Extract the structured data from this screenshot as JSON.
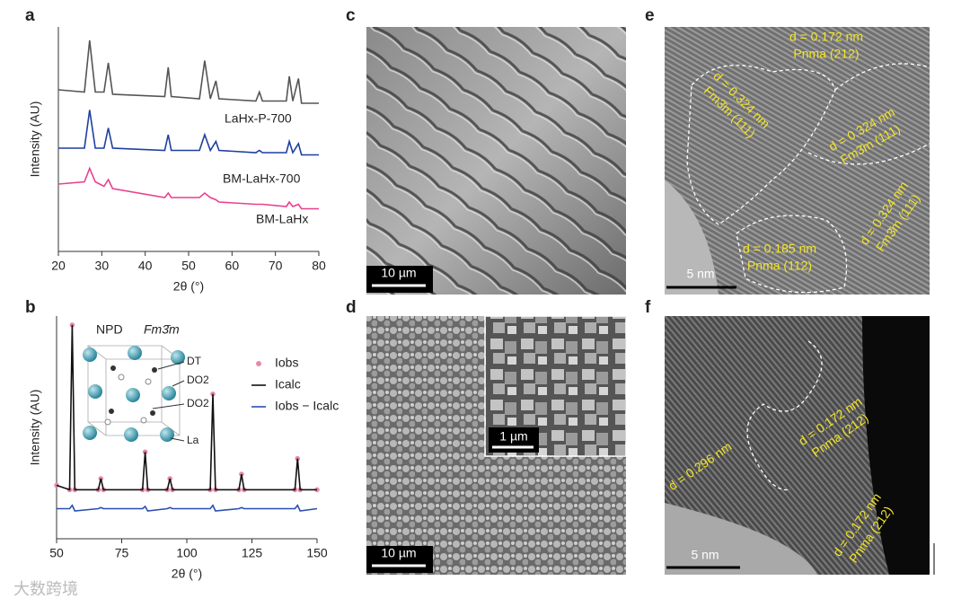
{
  "chart_data": [
    {
      "type": "line",
      "label": "a",
      "y_label": "Intensity (AU)",
      "x_label": "2θ (°)",
      "xlim": [
        20,
        80
      ],
      "xticks": [
        20,
        30,
        40,
        50,
        60,
        70,
        80
      ],
      "ylim": [
        0,
        100
      ],
      "x": [
        20,
        26,
        27.2,
        28.5,
        30.5,
        31.5,
        32.5,
        44.5,
        45.3,
        46,
        52.5,
        53.7,
        55,
        56.3,
        57,
        65.5,
        66.3,
        67,
        72.5,
        73.2,
        74,
        75.3,
        76,
        80
      ],
      "series": [
        {
          "name": "LaHx-P-700",
          "color": "#555555",
          "values": [
            72,
            71,
            94,
            71,
            71,
            84,
            70,
            69,
            82,
            69,
            68,
            85,
            68,
            76,
            68,
            67,
            71,
            67,
            67,
            78,
            67,
            77,
            66,
            66
          ]
        },
        {
          "name": "BM-LaHx-700",
          "color": "#1f3f9f",
          "values": [
            46,
            46,
            63,
            46,
            46,
            55,
            46,
            45,
            52,
            45,
            45,
            52,
            45,
            49,
            45,
            44,
            45,
            44,
            44,
            49,
            44,
            48,
            43,
            43
          ]
        },
        {
          "name": "BM-LaHx",
          "color": "#e8418f",
          "values": [
            30,
            31,
            37,
            31,
            29,
            32,
            28,
            24,
            26,
            24,
            24,
            26,
            24,
            23,
            22,
            21,
            21,
            21,
            20,
            22,
            20,
            21,
            19,
            19
          ]
        }
      ]
    },
    {
      "type": "line",
      "label": "b",
      "y_label": "Intensity (AU)",
      "x_label": "2θ (°)",
      "xlim": [
        50,
        150
      ],
      "xticks": [
        50,
        75,
        100,
        125,
        150
      ],
      "ylim": [
        0,
        100
      ],
      "annotations": [
        "NPD",
        "Fm3̄m"
      ],
      "structure_labels": [
        "DT",
        "DO2",
        "DO2",
        "La"
      ],
      "x": [
        50,
        55,
        56,
        57,
        66,
        67,
        68,
        83,
        84,
        85,
        92.5,
        93.5,
        94.5,
        109,
        110,
        111,
        120,
        121,
        122,
        141.5,
        142.5,
        143.5,
        150
      ],
      "series": [
        {
          "name": "Iobs",
          "color": "#e889a8",
          "marker": true,
          "values": [
            24,
            22,
            96,
            22,
            22,
            27,
            22,
            22,
            39,
            22,
            22,
            27,
            22,
            22,
            65,
            22,
            22,
            29,
            22,
            22,
            36,
            22,
            22
          ]
        },
        {
          "name": "Icalc",
          "color": "#111111",
          "values": [
            24,
            22,
            96,
            22,
            22,
            27,
            22,
            22,
            39,
            22,
            22,
            27,
            22,
            22,
            65,
            22,
            22,
            29,
            22,
            22,
            36,
            22,
            22
          ]
        },
        {
          "name": "Iobs − Icalc",
          "color": "#2a4fb0",
          "values": [
            13.5,
            13.5,
            15,
            12.5,
            13.5,
            14,
            13.5,
            13.5,
            14.5,
            12.5,
            13.5,
            14,
            13.5,
            13.5,
            15,
            12.5,
            13.5,
            14,
            13.5,
            13.5,
            15,
            12.5,
            13.5
          ]
        }
      ]
    }
  ],
  "panel_c": {
    "label": "c",
    "scale_bar": "10 µm"
  },
  "panel_d": {
    "label": "d",
    "scale_bar": "10 µm",
    "inset_scale_bar": "1 µm"
  },
  "panel_e": {
    "label": "e",
    "scale_bar": "5 nm",
    "annotations": [
      [
        "d = 0.172 nm",
        "Pnma (212)"
      ],
      [
        "d = 0.324 nm",
        "Fm3̄m (111)"
      ],
      [
        "d = 0.324 nm",
        "Fm3̄m (111)"
      ],
      [
        "d = 0.324 nm",
        "Fm3̄m (111)"
      ],
      [
        "d = 0.185 nm",
        "Pnma (112)"
      ]
    ]
  },
  "panel_f": {
    "label": "f",
    "scale_bar": "5 nm",
    "annotations": [
      [
        "d = 0.296 nm"
      ],
      [
        "d = 0.172 nm",
        "Pnma (212)"
      ],
      [
        "d = 0.172 nm",
        "Pnma (212)"
      ]
    ]
  },
  "watermark": "大数跨境"
}
